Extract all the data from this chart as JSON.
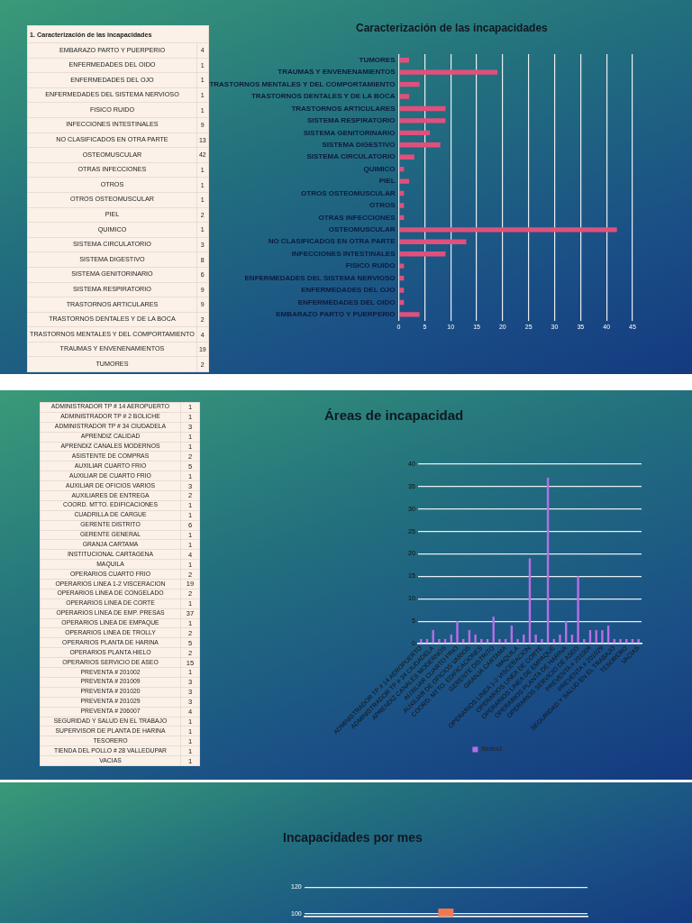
{
  "chart_data": [
    {
      "type": "other",
      "title": "1. Caracterización de las incapacidades",
      "categories": [
        "EMBARAZO PARTO Y PUERPERIO",
        "ENFERMEDADES DEL OIDO",
        "ENFERMEDADES DEL OJO",
        "ENFERMEDADES DEL SISTEMA NERVIOSO",
        "FISICO RUIDO",
        "INFECCIONES INTESTINALES",
        "NO CLASIFICADOS EN OTRA PARTE",
        "OSTEOMUSCULAR",
        "OTRAS INFECCIONES",
        "OTROS",
        "OTROS OSTEOMUSCULAR",
        "PIEL",
        "QUIMICO",
        "SISTEMA CIRCULATORIO",
        "SISTEMA DIGESTIVO",
        "SISTEMA GENITORINARIO",
        "SISTEMA RESPIRATORIO",
        "TRASTORNOS ARTICULARES",
        "TRASTORNOS DENTALES Y DE LA BOCA",
        "TRASTORNOS MENTALES Y DEL COMPORTAMIENTO",
        "TRAUMAS Y ENVENENAMIENTOS",
        "TUMORES"
      ],
      "values": [
        4,
        1,
        1,
        1,
        1,
        9,
        13,
        42,
        1,
        1,
        1,
        2,
        1,
        3,
        8,
        6,
        9,
        9,
        2,
        4,
        19,
        2
      ],
      "data_labels": true
    },
    {
      "type": "bar",
      "orientation": "horizontal",
      "title": "Caracterización de las incapacidades",
      "categories": [
        "TUMORES",
        "TRAUMAS Y ENVENENAMIENTOS",
        "TRASTORNOS MENTALES Y DEL COMPORTAMIENTO",
        "TRASTORNOS DENTALES Y DE LA BOCA",
        "TRASTORNOS ARTICULARES",
        "SISTEMA RESPIRATORIO",
        "SISTEMA GENITORINARIO",
        "SISTEMA DIGESTIVO",
        "SISTEMA CIRCULATORIO",
        "QUIMICO",
        "PIEL",
        "OTROS OSTEOMUSCULAR",
        "OTROS",
        "OTRAS INFECCIONES",
        "OSTEOMUSCULAR",
        "NO CLASIFICADOS EN OTRA PARTE",
        "INFECCIONES INTESTINALES",
        "FISICO RUIDO",
        "ENFERMEDADES DEL SISTEMA NERVIOSO",
        "ENFERMEDADES DEL OJO",
        "ENFERMEDADES DEL OIDO",
        "EMBARAZO PARTO Y PUERPERIO"
      ],
      "values": [
        2,
        19,
        4,
        2,
        9,
        9,
        6,
        8,
        3,
        1,
        2,
        1,
        1,
        1,
        42,
        13,
        9,
        1,
        1,
        1,
        1,
        4
      ],
      "color": "#e0507c",
      "xlim": [
        0,
        45
      ],
      "xticks": [
        0,
        5,
        10,
        15,
        20,
        25,
        30,
        35,
        40,
        45
      ],
      "grid": "x",
      "legend": false
    },
    {
      "type": "other",
      "categories": [
        "ADMINISTRADOR TP # 14 AEROPUERTO",
        "ADMINISTRADOR TP # 2 BOLICHE",
        "ADMINISTRADOR TP # 34 CIUDADELA",
        "APRENDIZ CALIDAD",
        "APRENDIZ CANALES MODERNOS",
        "ASISTENTE DE COMPRAS",
        "AUXILIAR CUARTO FRIO",
        "AUXILIAR DE CUARTO FRIO",
        "AUXILIAR DE OFICIOS VARIOS",
        "AUXILIARES DE ENTREGA",
        "COORD. MTTO. EDIFICACIONES",
        "CUADRILLA DE CARGUE",
        "GERENTE DISTRITO",
        "GERENTE GENERAL",
        "GRANJA CARTAMA",
        "INSTITUCIONAL CARTAGENA",
        "MAQUILA",
        "OPERARIOS CUARTO FRIO",
        "OPERARIOS LINEA 1-2 VISCERACION",
        "OPERARIOS LINEA DE CONGELADO",
        "OPERARIOS LINEA DE CORTE",
        "OPERARIOS LINEA DE EMP. PRESAS",
        "OPERARIOS LINEA DE EMPAQUE",
        "OPERARIOS LINEA DE TROLLY",
        "OPERARIOS PLANTA DE HARINA",
        "OPERARIOS PLANTA HIELO",
        "OPERARIOS SERVICIO DE ASEO",
        "PREVENTA # 201002",
        "PREVENTA # 201009",
        "PREVENTA # 201020",
        "PREVENTA # 201029",
        "PREVENTA # 206007",
        "SEGURIDAD Y SALUD EN EL TRABAJO",
        "SUPERVISOR DE PLANTA DE HARINA",
        "TESORERO",
        "TIENDA DEL POLLO # 28 VALLEDUPAR",
        "VACIAS"
      ],
      "values": [
        1,
        1,
        3,
        1,
        1,
        2,
        5,
        1,
        3,
        2,
        1,
        1,
        6,
        1,
        1,
        4,
        1,
        2,
        19,
        2,
        1,
        37,
        1,
        2,
        5,
        2,
        15,
        1,
        3,
        3,
        3,
        4,
        1,
        1,
        1,
        1,
        1
      ],
      "data_labels": true
    },
    {
      "type": "bar",
      "title": "Áreas de incapacidad",
      "categories": [
        "ADMINISTRADOR TP # 14 AEROPUERTO",
        null,
        "ADMINISTRADOR TP # 34 CIUDADELA",
        null,
        "APRENDIZ CANALES MODERNOS",
        null,
        "AUXILIAR CUARTO FRIO",
        null,
        "AUXILIAR DE OFICIOS VARIOS",
        null,
        "COORD. MTTO. EDIFICACIONES",
        null,
        "GERENTE DISTRITO",
        null,
        "GRANJA CARTAMA",
        null,
        "MAQUILA",
        null,
        "OPERARIOS LINEA 1-2 VISCERACION",
        null,
        "OPERARIOS LINEA DE CORTE",
        null,
        "OPERARIOS LINEA DE EMPAQUE",
        null,
        "OPERARIOS PLANTA DE HARINA",
        null,
        "OPERARIOS SERVICIO DE ASEO",
        null,
        "PREVENTA # 201009",
        null,
        "PREVENTA # 201029",
        null,
        "SEGURIDAD Y SALUD EN EL TRABAJO",
        null,
        "TESORERO",
        null,
        "VACIAS"
      ],
      "series": [
        {
          "name": "Series1",
          "color": "#b86ee8",
          "values": [
            1,
            1,
            3,
            1,
            1,
            2,
            5,
            1,
            3,
            2,
            1,
            1,
            6,
            1,
            1,
            4,
            1,
            2,
            19,
            2,
            1,
            37,
            1,
            2,
            5,
            2,
            15,
            1,
            3,
            3,
            3,
            4,
            1,
            1,
            1,
            1,
            1
          ]
        }
      ],
      "ylim": [
        0,
        40
      ],
      "yticks": [
        0,
        5,
        10,
        15,
        20,
        25,
        30,
        35,
        40
      ],
      "grid": "y",
      "legend": "bottom"
    },
    {
      "type": "bar",
      "title": "Incapacidades por mes",
      "categories": [
        null
      ],
      "values": [
        104
      ],
      "color": "#f07850",
      "ylim": [
        98,
        120
      ],
      "yticks": [
        100,
        120
      ],
      "grid": "y",
      "legend": false
    }
  ]
}
